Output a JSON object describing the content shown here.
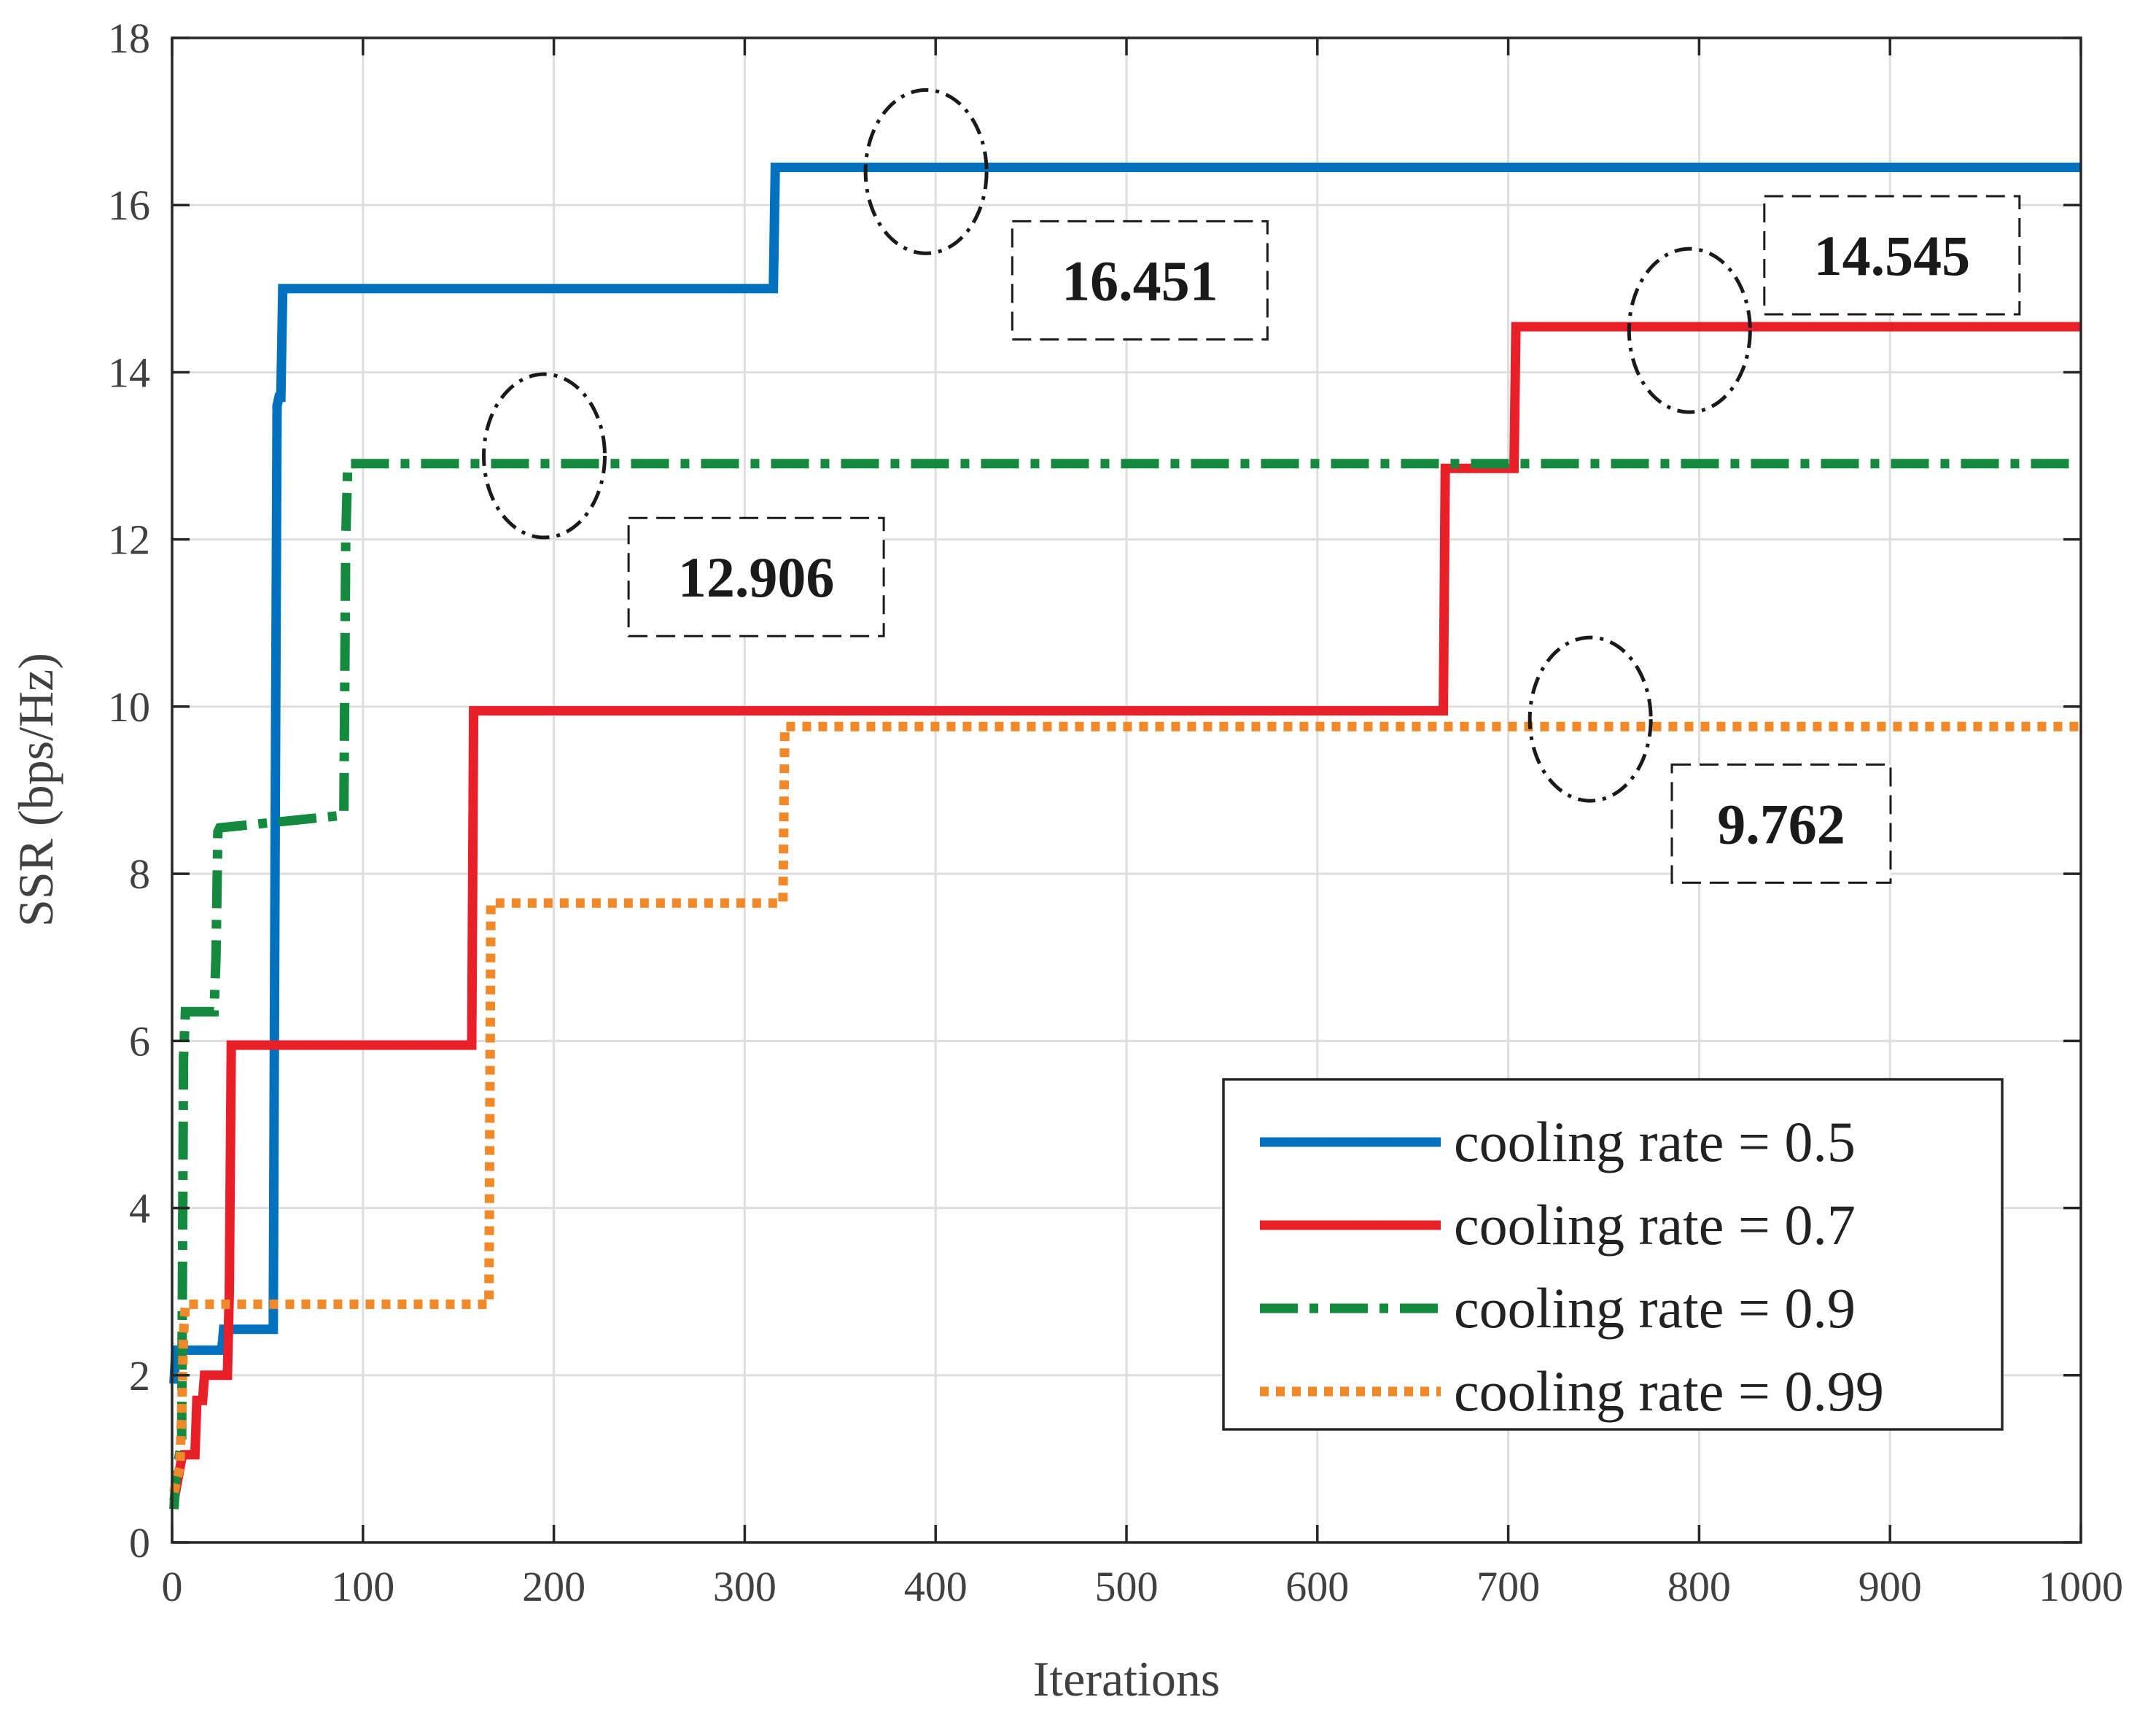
{
  "chart_data": {
    "type": "line",
    "title": "",
    "xlabel": "Iterations",
    "ylabel": "SSR (bps/Hz)",
    "xlim": [
      0,
      1000
    ],
    "ylim": [
      0,
      18
    ],
    "xticks": [
      0,
      100,
      200,
      300,
      400,
      500,
      600,
      700,
      800,
      900,
      1000
    ],
    "yticks": [
      0,
      2,
      4,
      6,
      8,
      10,
      12,
      14,
      16,
      18
    ],
    "grid": true,
    "legend_position": "bottom-right",
    "series": [
      {
        "name": "cooling rate = 0.5",
        "color": "#0072BD",
        "style": "solid",
        "x": [
          1,
          2,
          3,
          4,
          26,
          27,
          53,
          54,
          55,
          56,
          57,
          58,
          59,
          315,
          316,
          317,
          1000
        ],
        "y": [
          1.9,
          2.3,
          2.3,
          2.3,
          2.3,
          2.55,
          2.55,
          8.5,
          13.6,
          13.7,
          13.7,
          15.0,
          15.0,
          15.0,
          16.451,
          16.451,
          16.451
        ]
      },
      {
        "name": "cooling rate = 0.7",
        "color": "#E8202A",
        "style": "solid",
        "x": [
          1,
          5,
          6,
          12,
          13,
          16,
          17,
          29,
          30,
          31,
          32,
          157,
          158,
          159,
          666,
          667,
          668,
          703,
          704,
          705,
          1000
        ],
        "y": [
          0.5,
          1.0,
          1.05,
          1.05,
          1.7,
          1.7,
          2.0,
          2.0,
          3.0,
          5.95,
          5.95,
          5.95,
          9.95,
          9.95,
          9.95,
          12.85,
          12.85,
          12.85,
          14.545,
          14.545,
          14.545
        ]
      },
      {
        "name": "cooling rate = 0.9",
        "color": "#138A3D",
        "style": "dashdot",
        "x": [
          1,
          2,
          5,
          6,
          7,
          8,
          22,
          23,
          24,
          25,
          90,
          91,
          92,
          93,
          1000
        ],
        "y": [
          0.4,
          0.8,
          1.2,
          5.8,
          6.35,
          6.35,
          6.35,
          7.0,
          8.5,
          8.55,
          8.7,
          12.0,
          12.9,
          12.906,
          12.906
        ]
      },
      {
        "name": "cooling rate = 0.99",
        "color": "#F0892A",
        "style": "dotted",
        "x": [
          1,
          4,
          5,
          6,
          7,
          8,
          166,
          167,
          168,
          320,
          321,
          322,
          1000
        ],
        "y": [
          0.6,
          0.9,
          1.5,
          2.5,
          2.85,
          2.85,
          2.85,
          7.65,
          7.65,
          7.65,
          9.762,
          9.762,
          9.762
        ]
      }
    ],
    "annotations": [
      {
        "label": "16.451",
        "ellipse_x": 395,
        "ellipse_y": 16.4,
        "box_x": 507,
        "box_y": 15.1
      },
      {
        "label": "14.545",
        "ellipse_x": 795,
        "ellipse_y": 14.5,
        "box_x": 901,
        "box_y": 15.4
      },
      {
        "label": "12.906",
        "ellipse_x": 195,
        "ellipse_y": 13.0,
        "box_x": 306,
        "box_y": 11.55
      },
      {
        "label": "9.762",
        "ellipse_x": 743,
        "ellipse_y": 9.85,
        "box_x": 843,
        "box_y": 8.6
      }
    ]
  }
}
